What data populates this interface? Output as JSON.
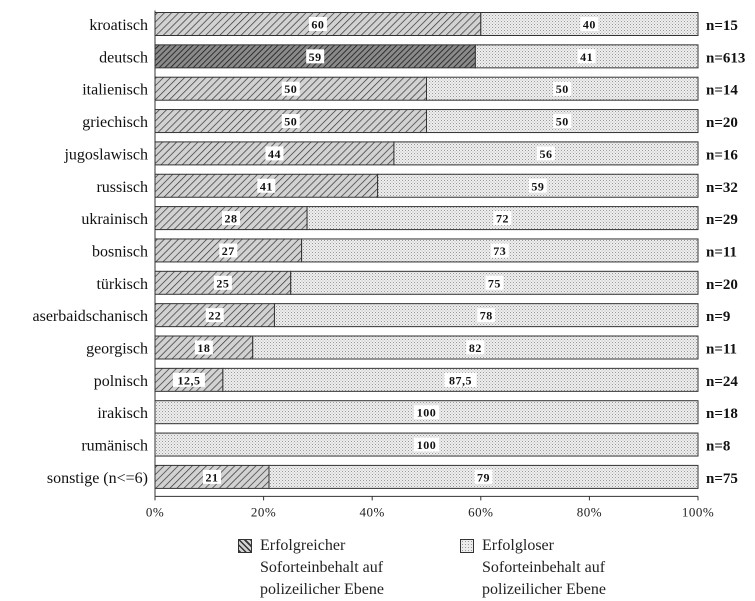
{
  "chart_data": {
    "type": "bar",
    "stacked": true,
    "orientation": "horizontal",
    "categories": [
      "kroatisch",
      "deutsch",
      "italienisch",
      "griechisch",
      "jugoslawisch",
      "russisch",
      "ukrainisch",
      "bosnisch",
      "türkisch",
      "aserbaidschanisch",
      "georgisch",
      "polnisch",
      "irakisch",
      "rumänisch",
      "sonstige (n<=6)"
    ],
    "n_labels": [
      "n=15",
      "n=613",
      "n=14",
      "n=20",
      "n=16",
      "n=32",
      "n=29",
      "n=11",
      "n=20",
      "n=9",
      "n=11",
      "n=24",
      "n=18",
      "n=8",
      "n=75"
    ],
    "series": [
      {
        "name": [
          "Erfolgreicher",
          "Soforteinbehalt auf",
          "polizeilicher Ebene"
        ],
        "values": [
          60,
          59,
          50,
          50,
          44,
          41,
          28,
          27,
          25,
          22,
          18,
          12.5,
          0,
          0,
          21
        ],
        "labels": [
          "60",
          "59",
          "50",
          "50",
          "44",
          "41",
          "28",
          "27",
          "25",
          "22",
          "18",
          "12,5",
          "",
          "",
          "21"
        ]
      },
      {
        "name": [
          "Erfolgloser",
          "Soforteinbehalt auf",
          "polizeilicher Ebene"
        ],
        "values": [
          40,
          41,
          50,
          50,
          56,
          59,
          72,
          73,
          75,
          78,
          82,
          87.5,
          100,
          100,
          79
        ],
        "labels": [
          "40",
          "41",
          "50",
          "50",
          "56",
          "59",
          "72",
          "73",
          "75",
          "78",
          "82",
          "87,5",
          "100",
          "100",
          "79"
        ]
      }
    ],
    "x_ticks": [
      "0%",
      "20%",
      "40%",
      "60%",
      "80%",
      "100%"
    ],
    "xlim": [
      0,
      100
    ],
    "legend_position": "bottom",
    "grid": false
  }
}
